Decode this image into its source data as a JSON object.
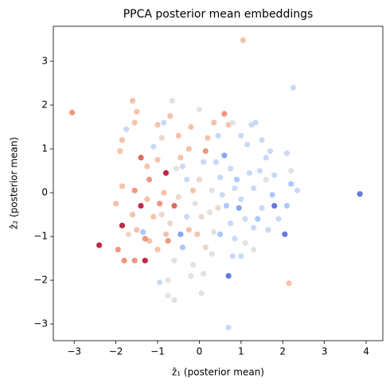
{
  "chart_data": {
    "type": "scatter",
    "title": "PPCA posterior mean embeddings",
    "x_label": "ẑ₁ (posterior mean)",
    "y_label": "ẑ₂ (posterior mean)",
    "xlim": [
      -3.5,
      4.4
    ],
    "ylim": [
      -3.38,
      3.8
    ],
    "xticks": [
      {
        "value": -3,
        "label": "−3"
      },
      {
        "value": -2,
        "label": "−2"
      },
      {
        "value": -1,
        "label": "−1"
      },
      0,
      1,
      2,
      3,
      4
    ],
    "yticks": [
      {
        "value": -3,
        "label": "−3"
      },
      {
        "value": -2,
        "label": "−2"
      },
      {
        "value": -1,
        "label": "−1"
      },
      0,
      1,
      2,
      3
    ],
    "grid": false,
    "series": [
      {
        "x": [
          -3.05,
          -2.4,
          -1.85,
          -1.3,
          -1.4,
          1.05,
          2.25,
          2.15,
          3.85,
          0.7,
          -1.55,
          -1.55,
          -1.5,
          -1.6,
          -1.8,
          -1.95,
          -2.0,
          -1.85,
          -1.9,
          -1.85,
          -1.75,
          -1.2,
          -1.25,
          -1.1,
          -1.0,
          -0.85,
          -0.7,
          -0.65,
          -0.2,
          0.0,
          0.35,
          0.2,
          0.45,
          0.6,
          0.7,
          0.8,
          1.0,
          1.25,
          1.35,
          1.15,
          1.5,
          1.6,
          1.7,
          1.8,
          1.75,
          1.6,
          2.1,
          2.2,
          2.2,
          2.35,
          2.1,
          1.8,
          2.05,
          1.5,
          1.4,
          1.3,
          1.1,
          1.0,
          0.9,
          0.75,
          0.6,
          0.5,
          0.4,
          0.3,
          0.25,
          0.35,
          0.5,
          0.65,
          0.75,
          0.85,
          0.7,
          0.8,
          1.0,
          1.1,
          1.3,
          0.3,
          0.15,
          0.1,
          0.05,
          -0.15,
          -0.2,
          -0.4,
          -0.45,
          -0.3,
          -0.1,
          0.0,
          -0.15,
          -0.3,
          -0.45,
          -0.55,
          -0.8,
          -0.85,
          -0.95,
          -0.6,
          -0.7,
          -0.8,
          -0.75,
          -0.6,
          -0.75,
          -0.95,
          -0.75,
          -0.6,
          -1.0,
          -1.2,
          -1.35,
          -1.3,
          -1.5,
          -1.6,
          -1.4,
          -1.55,
          -1.25,
          -1.1,
          -0.9,
          -0.5,
          0.1,
          0.15,
          -0.25,
          -0.5,
          -0.9,
          -0.4,
          0.55,
          1.2,
          1.3,
          1.45,
          1.9,
          1.65,
          0.95,
          -0.05,
          -0.25,
          0.05,
          -1.0,
          -1.7,
          0.45,
          0.85
        ],
        "values": [
          1.83,
          -1.2,
          -0.75,
          -1.55,
          0.8,
          3.48,
          2.4,
          -2.07,
          -0.03,
          -3.08,
          -1.55,
          1.6,
          1.85,
          2.1,
          -1.55,
          -1.3,
          -0.25,
          0.15,
          0.95,
          1.2,
          1.45,
          0.3,
          0.6,
          1.05,
          1.55,
          1.6,
          1.75,
          2.1,
          1.5,
          1.9,
          1.6,
          1.25,
          1.3,
          1.8,
          1.55,
          1.6,
          1.3,
          1.55,
          1.6,
          1.1,
          1.2,
          0.8,
          0.95,
          0.4,
          -0.05,
          0.3,
          0.9,
          0.5,
          0.2,
          0.05,
          -0.3,
          -0.3,
          -0.95,
          -0.35,
          -0.6,
          -0.8,
          -0.6,
          -0.15,
          0.3,
          0.55,
          0.85,
          0.35,
          0.7,
          0.05,
          -0.45,
          -0.9,
          -0.95,
          -0.3,
          -0.7,
          -1.05,
          -1.9,
          -1.45,
          -1.45,
          -1.15,
          -1.3,
          -1.4,
          -1.25,
          -1.85,
          -2.3,
          -1.65,
          -1.9,
          -1.25,
          -0.95,
          -0.55,
          -0.25,
          0.3,
          0.05,
          0.3,
          0.8,
          0.55,
          0.45,
          0.0,
          -0.25,
          -0.3,
          -0.7,
          -0.95,
          -1.1,
          -1.55,
          -2.0,
          -2.05,
          -2.35,
          -2.45,
          -1.3,
          -1.1,
          -0.9,
          -1.05,
          -0.85,
          -0.5,
          -0.3,
          0.05,
          -0.15,
          -0.55,
          -0.5,
          -0.1,
          0.7,
          0.95,
          1.0,
          1.3,
          1.25,
          0.6,
          -0.05,
          0.45,
          0.1,
          0.5,
          -0.6,
          -0.85,
          -0.35,
          -0.95,
          -0.85,
          -0.55,
          0.75,
          -0.95,
          -0.35,
          0.1
        ],
        "colors": [
          "#ee8468",
          "#b40426",
          "#b40426",
          "#b40426",
          "#d65244",
          "#f4b79b",
          "#bfd3f6",
          "#f4b79b",
          "#4a63d3",
          "#bfd3f6",
          "#ee8468",
          "#f4b79b",
          "#f4b79b",
          "#f4b79b",
          "#ee8468",
          "#ee8468",
          "#f4b79b",
          "#f4b79b",
          "#f4b79b",
          "#f4b79b",
          "#bfd3f6",
          "#ee8468",
          "#f4b79b",
          "#bfd3f6",
          "#f4b79b",
          "#bfd3f6",
          "#f4b79b",
          "#dcdddd",
          "#f4b79b",
          "#dcdddd",
          "#f4b79b",
          "#f4b79b",
          "#bfd3f6",
          "#ee8468",
          "#f4b79b",
          "#dcdddd",
          "#bfd3f6",
          "#bfd3f6",
          "#bfd3f6",
          "#bfd3f6",
          "#bfd3f6",
          "#bfd3f6",
          "#bfd3f6",
          "#bfd3f6",
          "#9ebeff",
          "#dcdddd",
          "#bfd3f6",
          "#dcdddd",
          "#9ebeff",
          "#bfd3f6",
          "#9ebeff",
          "#4a63d3",
          "#4a63d3",
          "#bfd3f6",
          "#9ebeff",
          "#bfd3f6",
          "#bfd3f6",
          "#bfd3f6",
          "#9ebeff",
          "#bfd3f6",
          "#7396f5",
          "#bfd3f6",
          "#bfd3f6",
          "#dcdddd",
          "#dcdddd",
          "#dcdddd",
          "#9ebeff",
          "#9ebeff",
          "#bfd3f6",
          "#bfd3f6",
          "#4a63d3",
          "#bfd3f6",
          "#bfd3f6",
          "#dcdddd",
          "#dcdddd",
          "#dcdddd",
          "#e8d1c2",
          "#dcdddd",
          "#dcdddd",
          "#dcdddd",
          "#dcdddd",
          "#9ebeff",
          "#7396f5",
          "#bfd3f6",
          "#dcdddd",
          "#e8d1c2",
          "#f4b79b",
          "#bfd3f6",
          "#f4b79b",
          "#dcdddd",
          "#b40426",
          "#f4b79b",
          "#ee8468",
          "#d65244",
          "#e8d1c2",
          "#f4b79b",
          "#ee8468",
          "#dcdddd",
          "#dcdddd",
          "#bfd3f6",
          "#dcdddd",
          "#dcdddd",
          "#f4b79b",
          "#f4b79b",
          "#9ebeff",
          "#ee8468",
          "#f4b79b",
          "#f4b79b",
          "#b40426",
          "#ee8468",
          "#f4b79b",
          "#f4b79b",
          "#e8d1c2",
          "#e8d1c2",
          "#bfd3f6",
          "#ee8468",
          "#f4b79b",
          "#f4b79b",
          "#e8d1c2",
          "#bfd3f6",
          "#bfd3f6",
          "#bfd3f6",
          "#bfd3f6",
          "#bfd3f6",
          "#bfd3f6",
          "#bfd3f6",
          "#7396f5",
          "#f4b79b",
          "#f4b79b",
          "#e8d1c2",
          "#f4b79b",
          "#e8d1c2",
          "#e8d1c2",
          "#bfd3f6"
        ]
      }
    ]
  }
}
